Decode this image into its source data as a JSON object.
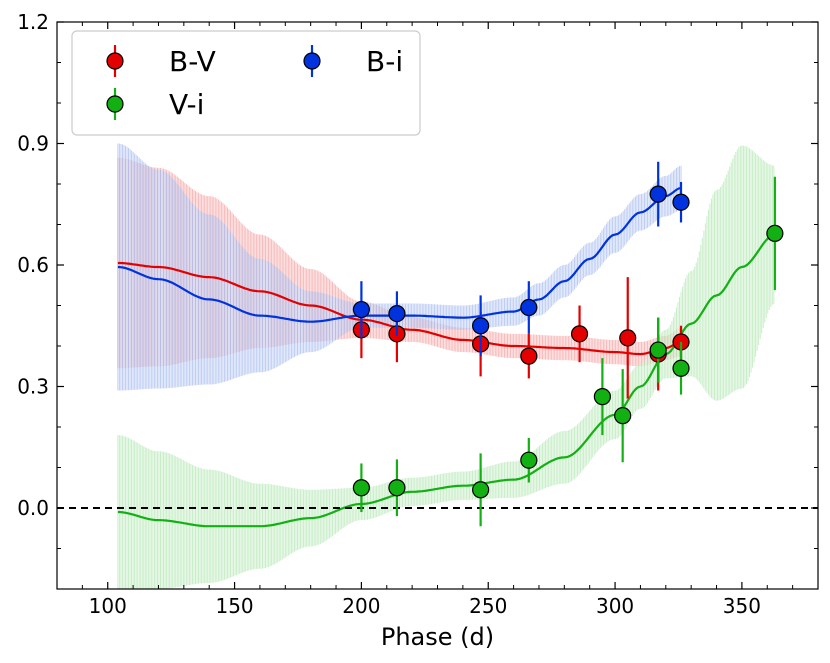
{
  "chart_data": {
    "type": "scatter",
    "title": "",
    "xlabel": "Phase (d)",
    "ylabel": "",
    "xlim": [
      80,
      380
    ],
    "ylim": [
      -0.2,
      1.2
    ],
    "xticks": [
      100,
      150,
      200,
      250,
      300,
      350
    ],
    "yticks": [
      0.0,
      0.3,
      0.6,
      0.9,
      1.2
    ],
    "xtick_labels": [
      "100",
      "150",
      "200",
      "250",
      "300",
      "350"
    ],
    "ytick_labels": [
      "0.0",
      "0.3",
      "0.6",
      "0.9",
      "1.2"
    ],
    "reference_line": {
      "y": 0.0,
      "style": "dashed",
      "color": "#000000"
    },
    "legend": {
      "position": "top-left",
      "columns": 2
    },
    "series": [
      {
        "name": "B-V",
        "color": "#e50000",
        "band_color": "#f5a3a3",
        "points": [
          {
            "x": 200,
            "y": 0.44,
            "err": 0.07
          },
          {
            "x": 214,
            "y": 0.43,
            "err": 0.07
          },
          {
            "x": 247,
            "y": 0.405,
            "err": 0.08
          },
          {
            "x": 266,
            "y": 0.375,
            "err": 0.055
          },
          {
            "x": 286,
            "y": 0.43,
            "err": 0.07
          },
          {
            "x": 305,
            "y": 0.42,
            "err": 0.15
          },
          {
            "x": 317,
            "y": 0.38,
            "err": 0.09
          },
          {
            "x": 326,
            "y": 0.41,
            "err": 0.04
          }
        ],
        "fit": {
          "x": [
            104,
            120,
            140,
            160,
            180,
            200,
            220,
            240,
            260,
            280,
            300,
            310,
            320,
            326
          ],
          "y": [
            0.605,
            0.595,
            0.57,
            0.535,
            0.5,
            0.465,
            0.44,
            0.415,
            0.4,
            0.395,
            0.385,
            0.38,
            0.395,
            0.41
          ],
          "band": [
            0.26,
            0.245,
            0.2,
            0.14,
            0.09,
            0.045,
            0.03,
            0.03,
            0.03,
            0.03,
            0.03,
            0.03,
            0.03,
            0.035
          ]
        }
      },
      {
        "name": "B-i",
        "color": "#0033dd",
        "band_color": "#a8bdf0",
        "points": [
          {
            "x": 200,
            "y": 0.49,
            "err": 0.07
          },
          {
            "x": 214,
            "y": 0.48,
            "err": 0.055
          },
          {
            "x": 247,
            "y": 0.45,
            "err": 0.075
          },
          {
            "x": 266,
            "y": 0.495,
            "err": 0.065
          },
          {
            "x": 317,
            "y": 0.775,
            "err": 0.08
          },
          {
            "x": 326,
            "y": 0.755,
            "err": 0.05
          }
        ],
        "fit": {
          "x": [
            104,
            120,
            140,
            160,
            180,
            200,
            220,
            240,
            260,
            270,
            280,
            290,
            300,
            310,
            320,
            326
          ],
          "y": [
            0.595,
            0.565,
            0.515,
            0.475,
            0.46,
            0.475,
            0.475,
            0.47,
            0.485,
            0.515,
            0.56,
            0.615,
            0.675,
            0.73,
            0.77,
            0.79
          ],
          "band": [
            0.305,
            0.27,
            0.21,
            0.14,
            0.075,
            0.03,
            0.03,
            0.03,
            0.035,
            0.04,
            0.04,
            0.04,
            0.045,
            0.045,
            0.05,
            0.055
          ]
        }
      },
      {
        "name": "V-i",
        "color": "#13b013",
        "band_color": "#b6e8b6",
        "points": [
          {
            "x": 200,
            "y": 0.05,
            "err": 0.06
          },
          {
            "x": 214,
            "y": 0.05,
            "err": 0.07
          },
          {
            "x": 247,
            "y": 0.045,
            "err": 0.09
          },
          {
            "x": 266,
            "y": 0.118,
            "err": 0.055
          },
          {
            "x": 295,
            "y": 0.275,
            "err": 0.095
          },
          {
            "x": 303,
            "y": 0.228,
            "err": 0.115
          },
          {
            "x": 317,
            "y": 0.39,
            "err": 0.08
          },
          {
            "x": 326,
            "y": 0.345,
            "err": 0.065
          },
          {
            "x": 363,
            "y": 0.678,
            "err": 0.14
          }
        ],
        "fit": {
          "x": [
            104,
            120,
            140,
            160,
            180,
            200,
            220,
            240,
            260,
            280,
            300,
            310,
            320,
            330,
            340,
            350,
            363
          ],
          "y": [
            -0.01,
            -0.03,
            -0.045,
            -0.045,
            -0.025,
            0.01,
            0.04,
            0.055,
            0.07,
            0.125,
            0.23,
            0.3,
            0.38,
            0.455,
            0.525,
            0.595,
            0.675
          ],
          "band": [
            0.19,
            0.17,
            0.14,
            0.105,
            0.07,
            0.04,
            0.035,
            0.035,
            0.045,
            0.065,
            0.06,
            0.055,
            0.06,
            0.13,
            0.26,
            0.3,
            0.17
          ]
        }
      }
    ]
  }
}
